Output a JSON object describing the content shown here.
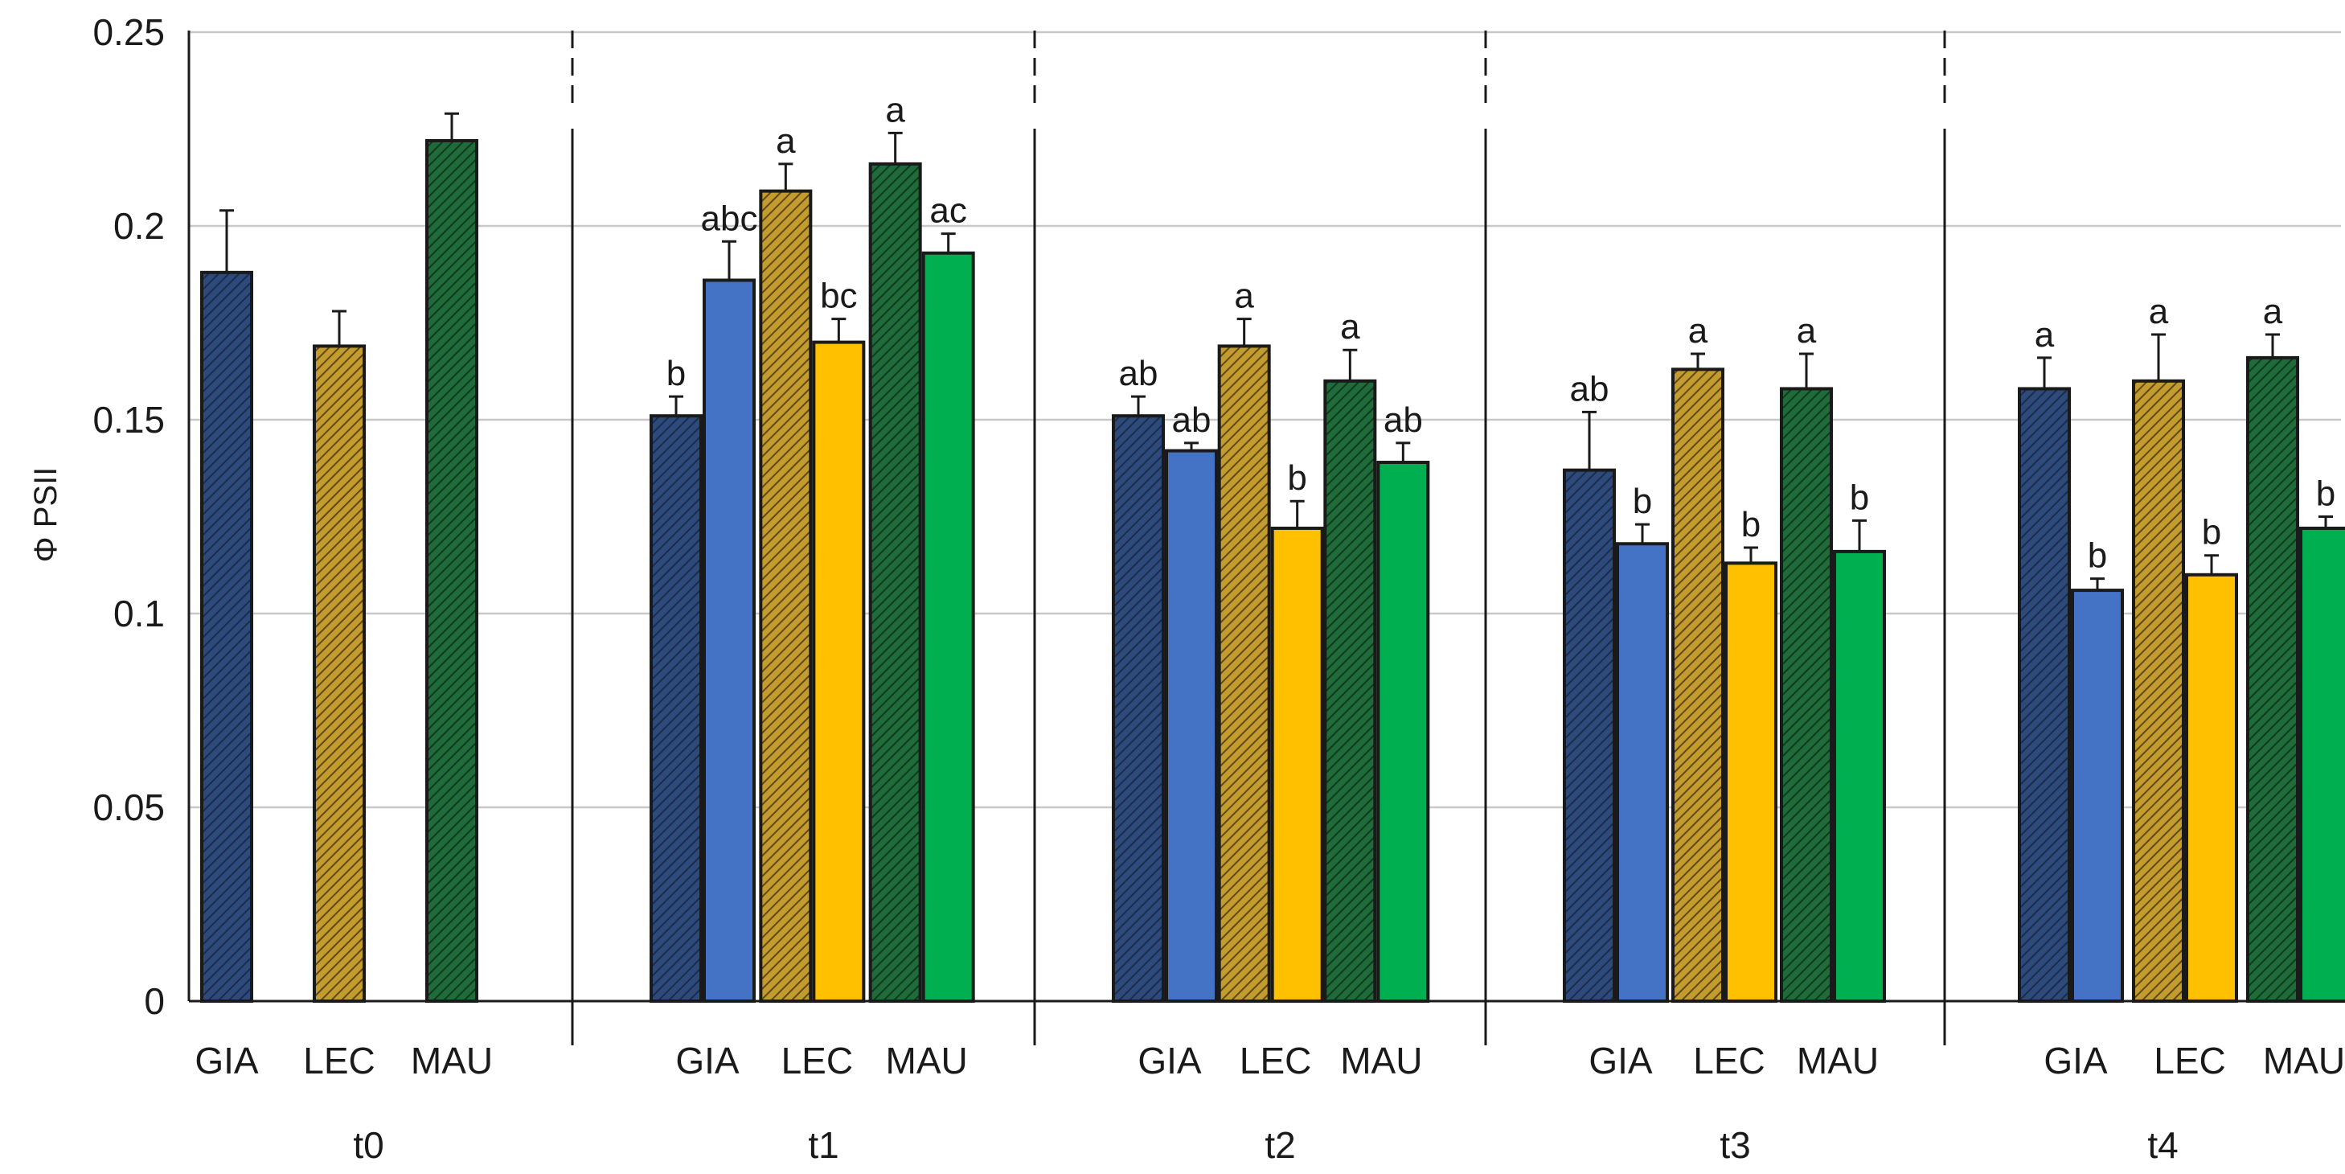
{
  "chart_data": {
    "type": "bar",
    "title": "",
    "ylabel": "Φ PSII",
    "xlabel": "",
    "ylim": [
      0,
      0.25
    ],
    "yticks": [
      "0",
      "0.05",
      "0.1",
      "0.15",
      "0.2",
      "0.25"
    ],
    "grid": true,
    "hatched_series_note": "hatched bars and solid bars per cultivar",
    "series_colors": {
      "GIA": "#2e4a7a",
      "LEC": "#b8902a",
      "MAU": "#1f6b3a",
      "GIA_solid": "#4472c4",
      "LEC_solid": "#ffc000",
      "MAU_solid": "#00b050"
    },
    "groups": [
      {
        "label": "t0",
        "categories": [
          "GIA",
          "LEC",
          "MAU"
        ],
        "bars": [
          {
            "cultivar": "GIA",
            "style": "hatched",
            "value": 0.188,
            "error": 0.016,
            "sig": ""
          },
          {
            "cultivar": "LEC",
            "style": "hatched",
            "value": 0.169,
            "error": 0.009,
            "sig": ""
          },
          {
            "cultivar": "MAU",
            "style": "hatched",
            "value": 0.222,
            "error": 0.007,
            "sig": ""
          }
        ]
      },
      {
        "label": "t1",
        "categories": [
          "GIA",
          "LEC",
          "MAU"
        ],
        "bars": [
          {
            "cultivar": "GIA",
            "style": "hatched",
            "value": 0.151,
            "error": 0.005,
            "sig": "b"
          },
          {
            "cultivar": "GIA",
            "style": "solid",
            "value": 0.186,
            "error": 0.01,
            "sig": "abc"
          },
          {
            "cultivar": "LEC",
            "style": "hatched",
            "value": 0.209,
            "error": 0.007,
            "sig": "a"
          },
          {
            "cultivar": "LEC",
            "style": "solid",
            "value": 0.17,
            "error": 0.006,
            "sig": "bc"
          },
          {
            "cultivar": "MAU",
            "style": "hatched",
            "value": 0.216,
            "error": 0.008,
            "sig": "a"
          },
          {
            "cultivar": "MAU",
            "style": "solid",
            "value": 0.193,
            "error": 0.005,
            "sig": "ac"
          }
        ]
      },
      {
        "label": "t2",
        "categories": [
          "GIA",
          "LEC",
          "MAU"
        ],
        "bars": [
          {
            "cultivar": "GIA",
            "style": "hatched",
            "value": 0.151,
            "error": 0.005,
            "sig": "ab"
          },
          {
            "cultivar": "GIA",
            "style": "solid",
            "value": 0.142,
            "error": 0.002,
            "sig": "ab"
          },
          {
            "cultivar": "LEC",
            "style": "hatched",
            "value": 0.169,
            "error": 0.007,
            "sig": "a"
          },
          {
            "cultivar": "LEC",
            "style": "solid",
            "value": 0.122,
            "error": 0.007,
            "sig": "b"
          },
          {
            "cultivar": "MAU",
            "style": "hatched",
            "value": 0.16,
            "error": 0.008,
            "sig": "a"
          },
          {
            "cultivar": "MAU",
            "style": "solid",
            "value": 0.139,
            "error": 0.005,
            "sig": "ab"
          }
        ]
      },
      {
        "label": "t3",
        "categories": [
          "GIA",
          "LEC",
          "MAU"
        ],
        "bars": [
          {
            "cultivar": "GIA",
            "style": "hatched",
            "value": 0.137,
            "error": 0.015,
            "sig": "ab"
          },
          {
            "cultivar": "GIA",
            "style": "solid",
            "value": 0.118,
            "error": 0.005,
            "sig": "b"
          },
          {
            "cultivar": "LEC",
            "style": "hatched",
            "value": 0.163,
            "error": 0.004,
            "sig": "a"
          },
          {
            "cultivar": "LEC",
            "style": "solid",
            "value": 0.113,
            "error": 0.004,
            "sig": "b"
          },
          {
            "cultivar": "MAU",
            "style": "hatched",
            "value": 0.158,
            "error": 0.009,
            "sig": "a"
          },
          {
            "cultivar": "MAU",
            "style": "solid",
            "value": 0.116,
            "error": 0.008,
            "sig": "b"
          }
        ]
      },
      {
        "label": "t4",
        "categories": [
          "GIA",
          "LEC",
          "MAU"
        ],
        "bars": [
          {
            "cultivar": "GIA",
            "style": "hatched",
            "value": 0.158,
            "error": 0.008,
            "sig": "a"
          },
          {
            "cultivar": "GIA",
            "style": "solid",
            "value": 0.106,
            "error": 0.003,
            "sig": "b"
          },
          {
            "cultivar": "LEC",
            "style": "hatched",
            "value": 0.16,
            "error": 0.012,
            "sig": "a"
          },
          {
            "cultivar": "LEC",
            "style": "solid",
            "value": 0.11,
            "error": 0.005,
            "sig": "b"
          },
          {
            "cultivar": "MAU",
            "style": "hatched",
            "value": 0.166,
            "error": 0.006,
            "sig": "a"
          },
          {
            "cultivar": "MAU",
            "style": "solid",
            "value": 0.122,
            "error": 0.003,
            "sig": "b"
          }
        ]
      }
    ]
  }
}
